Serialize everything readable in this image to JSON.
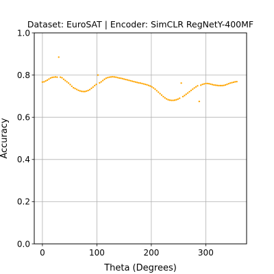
{
  "chart_data": {
    "type": "scatter",
    "title": "Dataset: EuroSAT | Encoder: SimCLR RegNetY-400MF",
    "xlabel": "Theta (Degrees)",
    "ylabel": "Accuracy",
    "xlim": [
      -15,
      375
    ],
    "ylim": [
      0.0,
      1.0
    ],
    "xticks": [
      0,
      100,
      200,
      300
    ],
    "yticks": [
      0.0,
      0.2,
      0.4,
      0.6,
      0.8,
      1.0
    ],
    "xtick_labels": [
      "0",
      "100",
      "200",
      "300"
    ],
    "ytick_labels": [
      "0.0",
      "0.2",
      "0.4",
      "0.6",
      "0.8",
      "1.0"
    ],
    "grid": true,
    "marker_color": "#ffa500",
    "series": [
      {
        "x": [
          0,
          3,
          6,
          9,
          12,
          15,
          18,
          21,
          24,
          27,
          30,
          33,
          36,
          39,
          42,
          45,
          48,
          51,
          54,
          57,
          60,
          63,
          66,
          69,
          72,
          75,
          78,
          81,
          84,
          87,
          90,
          93,
          96,
          99,
          102,
          105,
          108,
          111,
          114,
          117,
          120,
          123,
          126,
          129,
          132,
          135,
          138,
          141,
          144,
          147,
          150,
          153,
          156,
          159,
          162,
          165,
          168,
          171,
          174,
          177,
          180,
          183,
          186,
          189,
          192,
          195,
          198,
          201,
          204,
          207,
          210,
          213,
          216,
          219,
          222,
          225,
          228,
          231,
          234,
          237,
          240,
          243,
          246,
          249,
          252,
          255,
          258,
          261,
          264,
          267,
          270,
          273,
          276,
          279,
          282,
          285,
          288,
          291,
          294,
          297,
          300,
          303,
          306,
          309,
          312,
          315,
          318,
          321,
          324,
          327,
          330,
          333,
          336,
          339,
          342,
          345,
          348,
          351,
          354,
          357
        ],
        "y": [
          0.767,
          0.768,
          0.772,
          0.776,
          0.781,
          0.786,
          0.789,
          0.79,
          0.791,
          0.79,
          0.885,
          0.79,
          0.787,
          0.78,
          0.774,
          0.768,
          0.762,
          0.755,
          0.747,
          0.74,
          0.736,
          0.732,
          0.728,
          0.725,
          0.723,
          0.722,
          0.722,
          0.724,
          0.727,
          0.731,
          0.737,
          0.743,
          0.75,
          0.756,
          0.8,
          0.763,
          0.768,
          0.774,
          0.78,
          0.785,
          0.788,
          0.79,
          0.791,
          0.792,
          0.791,
          0.79,
          0.788,
          0.786,
          0.785,
          0.783,
          0.781,
          0.779,
          0.777,
          0.775,
          0.773,
          0.771,
          0.769,
          0.767,
          0.765,
          0.763,
          0.762,
          0.76,
          0.758,
          0.756,
          0.754,
          0.751,
          0.748,
          0.744,
          0.739,
          0.733,
          0.726,
          0.719,
          0.712,
          0.705,
          0.698,
          0.692,
          0.687,
          0.683,
          0.681,
          0.68,
          0.68,
          0.681,
          0.683,
          0.686,
          0.69,
          0.762,
          0.698,
          0.703,
          0.709,
          0.715,
          0.721,
          0.727,
          0.733,
          0.739,
          0.744,
          0.749,
          0.675,
          0.752,
          0.756,
          0.758,
          0.76,
          0.76,
          0.759,
          0.757,
          0.755,
          0.753,
          0.752,
          0.751,
          0.75,
          0.75,
          0.75,
          0.751,
          0.753,
          0.756,
          0.759,
          0.762,
          0.764,
          0.766,
          0.768,
          0.769
        ]
      }
    ]
  }
}
